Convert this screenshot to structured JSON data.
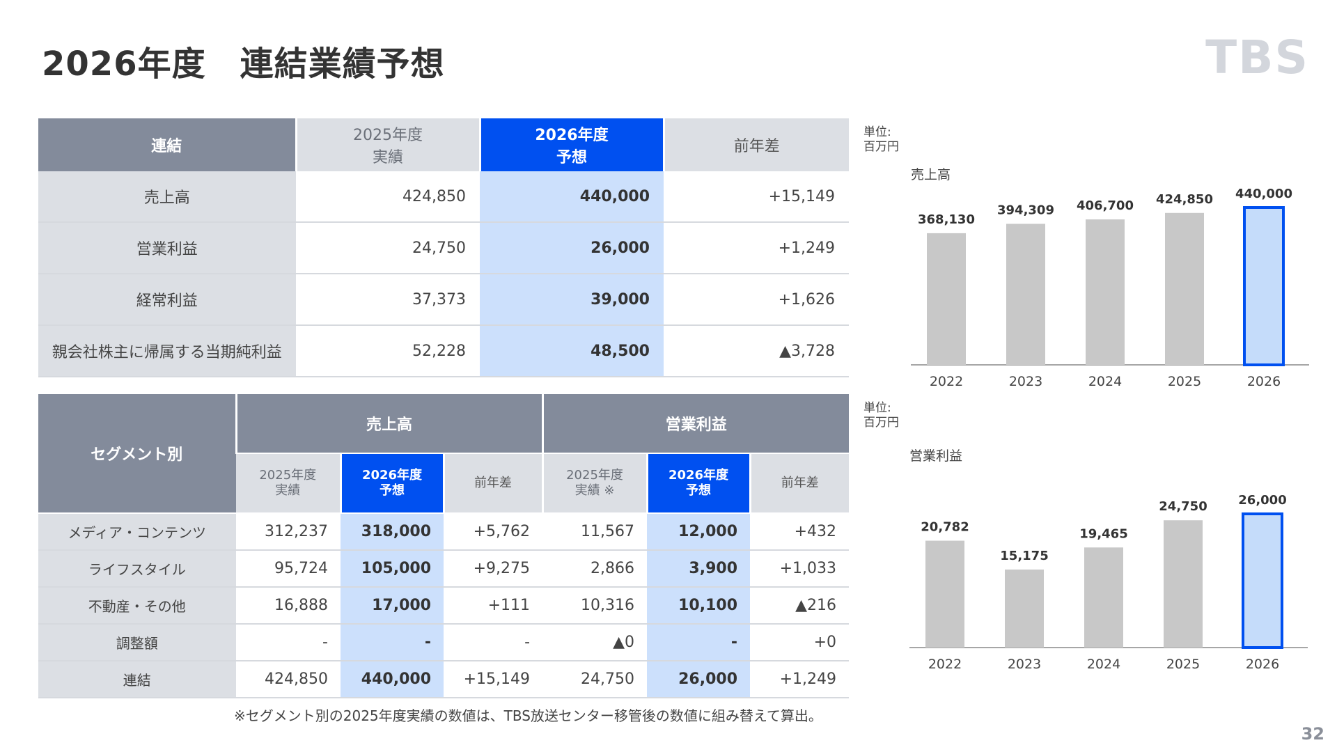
{
  "page": {
    "title": "2026年度　連結業績予想",
    "logo": "TBS",
    "page_number": "32",
    "note": "※セグメント別の2025年度実績の数値は、TBS放送センター移管後の数値に組み替えて算出。"
  },
  "consolidated_table": {
    "header": {
      "corner": "連結",
      "col_2025_line1": "2025年度",
      "col_2025_line2": "実績",
      "col_2026_line1": "2026年度",
      "col_2026_line2": "予想",
      "col_diff": "前年差"
    },
    "rows": [
      {
        "label": "売上高",
        "y2025": "424,850",
        "y2026": "440,000",
        "diff": "+15,149"
      },
      {
        "label": "営業利益",
        "y2025": "24,750",
        "y2026": "26,000",
        "diff": "+1,249"
      },
      {
        "label": "経常利益",
        "y2025": "37,373",
        "y2026": "39,000",
        "diff": "+1,626"
      },
      {
        "label": "親会社株主に帰属する当期純利益",
        "y2025": "52,228",
        "y2026": "48,500",
        "diff": "▲3,728"
      }
    ]
  },
  "segment_table": {
    "header": {
      "corner": "セグメント別",
      "group_sales": "売上高",
      "group_op": "営業利益",
      "sales_2025_line1": "2025年度",
      "sales_2025_line2": "実績",
      "sales_2026_line1": "2026年度",
      "sales_2026_line2": "予想",
      "sales_diff": "前年差",
      "op_2025_line1": "2025年度",
      "op_2025_line2": "実績 ※",
      "op_2026_line1": "2026年度",
      "op_2026_line2": "予想",
      "op_diff": "前年差"
    },
    "rows": [
      {
        "label": "メディア・コンテンツ",
        "s2025": "312,237",
        "s2026": "318,000",
        "sdiff": "+5,762",
        "o2025": "11,567",
        "o2026": "12,000",
        "odiff": "+432"
      },
      {
        "label": "ライフスタイル",
        "s2025": "95,724",
        "s2026": "105,000",
        "sdiff": "+9,275",
        "o2025": "2,866",
        "o2026": "3,900",
        "odiff": "+1,033"
      },
      {
        "label": "不動産・その他",
        "s2025": "16,888",
        "s2026": "17,000",
        "sdiff": "+111",
        "o2025": "10,316",
        "o2026": "10,100",
        "odiff": "▲216"
      },
      {
        "label": "調整額",
        "s2025": "-",
        "s2026": "-",
        "sdiff": "-",
        "o2025": "▲0",
        "o2026": "-",
        "odiff": "+0"
      },
      {
        "label": "連結",
        "s2025": "424,850",
        "s2026": "440,000",
        "sdiff": "+15,149",
        "o2025": "24,750",
        "o2026": "26,000",
        "odiff": "+1,249"
      }
    ]
  },
  "chart_data": [
    {
      "type": "bar",
      "unit_label": "単位:\n百万円",
      "title": "売上高",
      "categories": [
        "2022",
        "2023",
        "2024",
        "2025",
        "2026"
      ],
      "values": [
        368130,
        394309,
        406700,
        424850,
        440000
      ],
      "value_labels": [
        "368,130",
        "394,309",
        "406,700",
        "424,850",
        "440,000"
      ],
      "highlight_index": 4,
      "bar_color": "#c8c8c8",
      "highlight_fill": "#c5dcfa",
      "highlight_stroke": "#0050f0",
      "ylim": [
        0,
        440000
      ]
    },
    {
      "type": "bar",
      "unit_label": "単位:\n百万円",
      "title": "営業利益",
      "categories": [
        "2022",
        "2023",
        "2024",
        "2025",
        "2026"
      ],
      "values": [
        20782,
        15175,
        19465,
        24750,
        26000
      ],
      "value_labels": [
        "20,782",
        "15,175",
        "19,465",
        "24,750",
        "26,000"
      ],
      "highlight_index": 4,
      "bar_color": "#c8c8c8",
      "highlight_fill": "#c5dcfa",
      "highlight_stroke": "#0050f0",
      "ylim": [
        0,
        26000
      ]
    }
  ]
}
